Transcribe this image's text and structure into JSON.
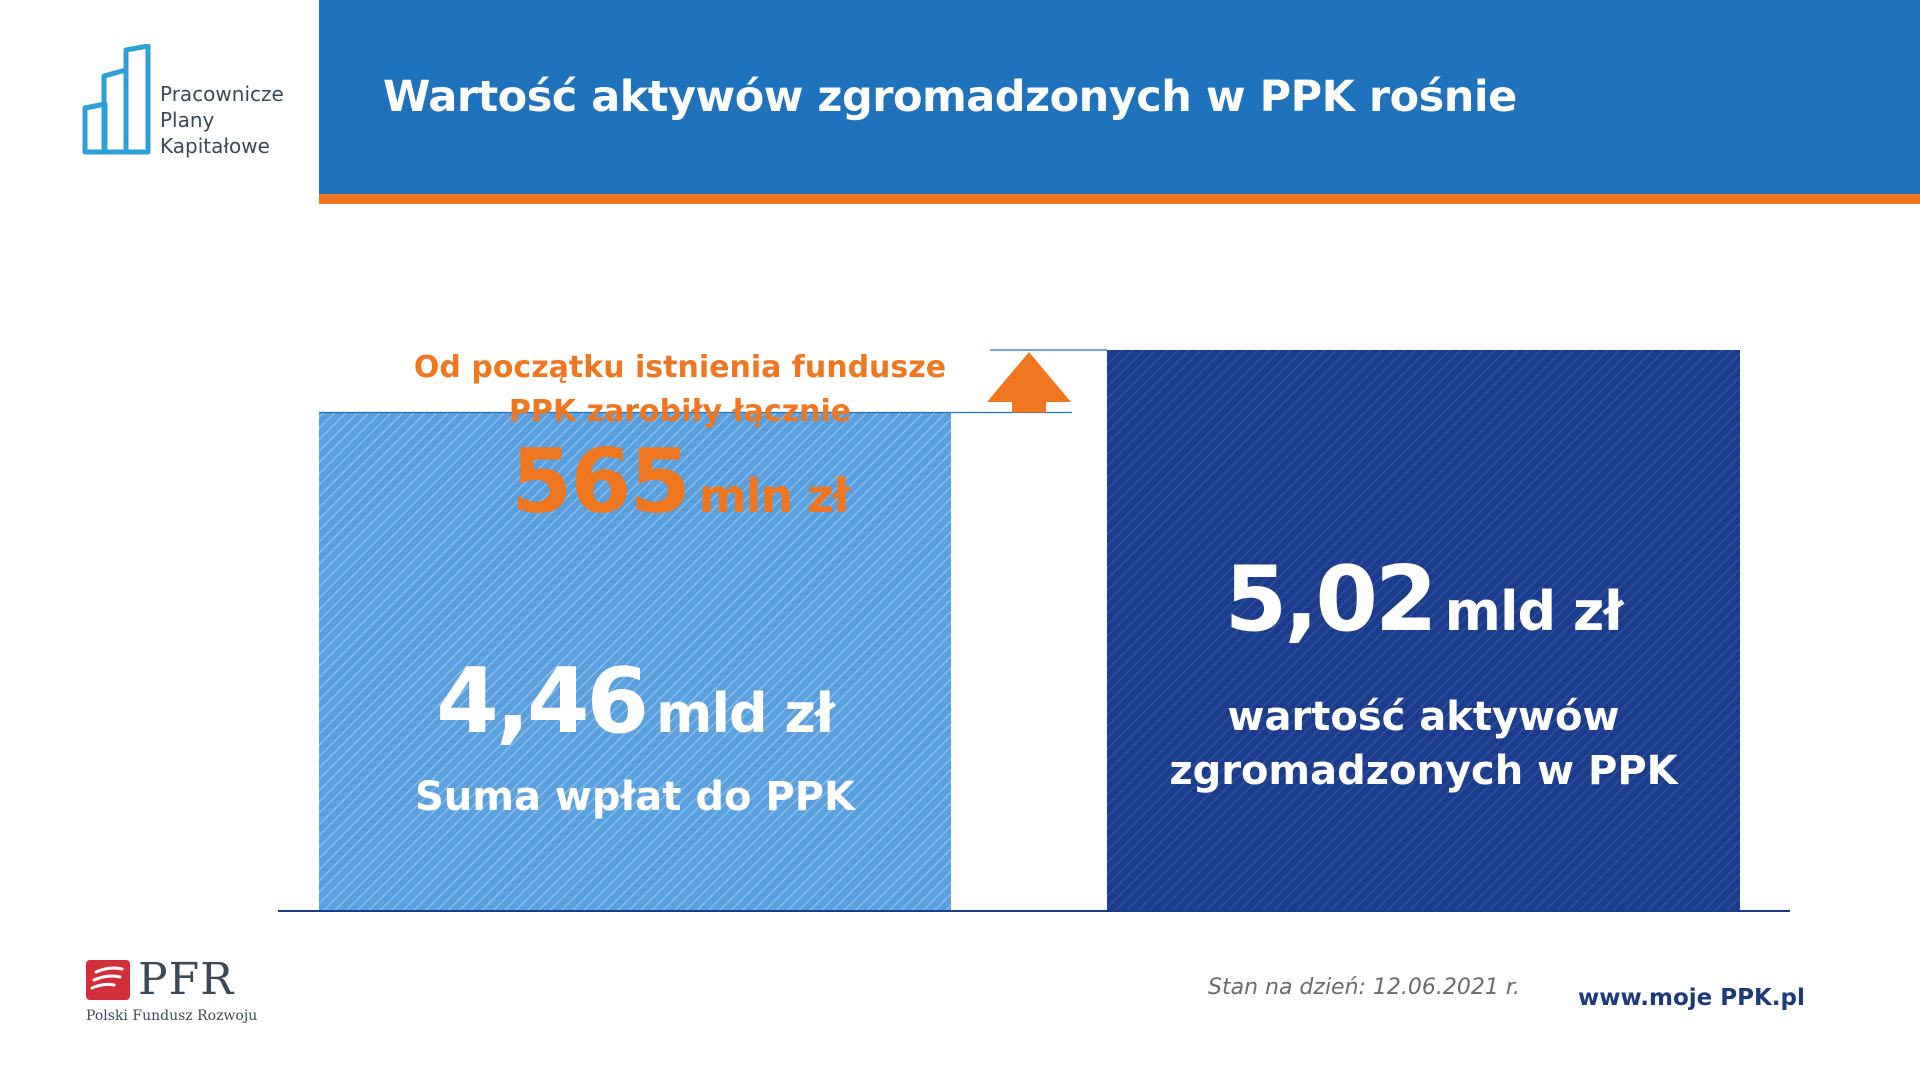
{
  "header": {
    "title": "Wartość aktywów zgromadzonych w PPK rośnie",
    "logo_lines": [
      "Pracownicze",
      "Plany",
      "Kapitałowe"
    ],
    "logo_icon": "buildings-bars-icon"
  },
  "chart_data": {
    "type": "bar",
    "categories": [
      "Suma wpłat do PPK",
      "wartość aktywów zgromadzonych w PPK"
    ],
    "values": [
      4.46,
      5.02
    ],
    "unit": "mld zł",
    "value_labels": [
      "4,46",
      "5,02"
    ],
    "descriptions": [
      [
        "Suma wpłat do PPK"
      ],
      [
        "wartość aktywów",
        "zgromadzonych w PPK"
      ]
    ],
    "ylim": [
      0,
      5.02
    ],
    "grid": false,
    "colors": [
      "#5aa0de",
      "#1b3b8b"
    ],
    "annotation": {
      "lines": [
        "Od początku istnienia fundusze",
        "PPK zarobiły łącznie"
      ],
      "value_label": "565",
      "value": 565,
      "unit": "mln zł",
      "color": "#f0771f",
      "icon": "up-arrow-icon"
    }
  },
  "footer": {
    "date_label": "Stan na dzień: 12.06.2021 r.",
    "url": "www.moje PPK.pl",
    "pfr_logo_text": "PFR",
    "pfr_subtitle": "Polski Fundusz Rozwoju"
  },
  "colors": {
    "header_blue": "#1f73bd",
    "accent_orange": "#f0771f",
    "dark_navy": "#1b3b8b",
    "light_blue": "#5aa0de",
    "pfr_red": "#d42e3a"
  }
}
